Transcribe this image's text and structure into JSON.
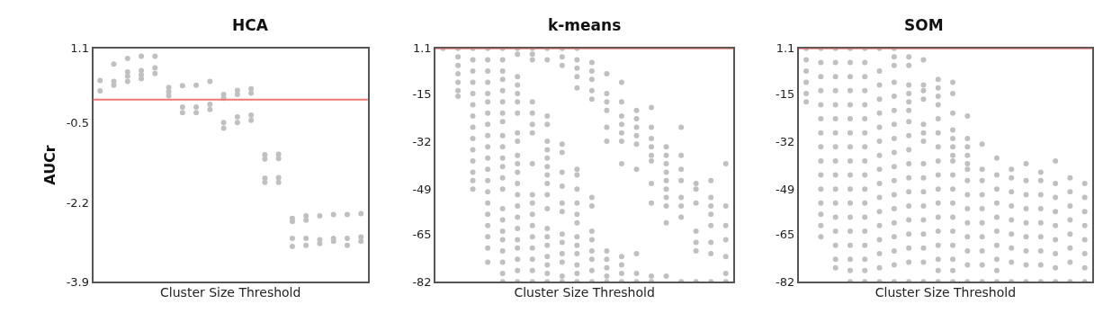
{
  "chart_data": [
    {
      "type": "scatter",
      "title": "HCA",
      "xlabel": "Cluster Size Threshold",
      "ylabel": "AUCr",
      "categories": [
        null,
        null,
        null,
        null,
        null,
        null,
        null,
        null,
        null,
        null,
        null,
        null,
        null,
        null,
        null,
        null,
        null,
        null,
        null,
        null
      ],
      "ylim": [
        -3.9,
        1.1
      ],
      "yticks": [
        1.1,
        -0.5,
        -2.2,
        -3.9
      ],
      "tick_labels": "y",
      "grid": false,
      "marker": "circle",
      "color": "#c0c0c0",
      "ref_lines": [
        {
          "axis": "y",
          "value": 0,
          "color": "#f07870"
        }
      ],
      "series": [
        {
          "values": [
            0.41,
            0.76,
            0.88,
            0.93,
            0.93,
            0.26,
            0.3,
            0.31,
            0.39,
            0.11,
            0.2,
            0.23,
            -1.18,
            -1.17,
            -2.54,
            -2.49,
            -2.49,
            -2.46,
            -2.46,
            -2.44
          ]
        },
        {
          "values": [
            0.19,
            0.39,
            0.59,
            0.62,
            0.68,
            0.17,
            -0.16,
            -0.16,
            -0.1,
            0.03,
            0.11,
            0.14,
            -1.27,
            -1.26,
            -2.61,
            -2.58,
            -3.0,
            -2.97,
            -2.97,
            -2.94
          ]
        },
        {
          "values": [
            null,
            0.31,
            0.5,
            0.53,
            0.56,
            0.08,
            -0.28,
            -0.28,
            -0.21,
            -0.49,
            -0.37,
            -0.33,
            -1.68,
            -1.67,
            -2.97,
            -2.97,
            -3.08,
            -3.03,
            -3.12,
            -3.03
          ]
        },
        {
          "values": [
            null,
            null,
            0.39,
            0.45,
            null,
            null,
            null,
            null,
            null,
            -0.61,
            -0.49,
            -0.44,
            -1.77,
            -1.77,
            -3.14,
            -3.12,
            null,
            null,
            null,
            null
          ]
        }
      ]
    },
    {
      "type": "scatter",
      "title": "k-means",
      "xlabel": "Cluster Size Threshold",
      "categories": [
        null,
        null,
        null,
        null,
        null,
        null,
        null,
        null,
        null,
        null,
        null,
        null,
        null,
        null,
        null,
        null,
        null,
        null,
        null,
        null
      ],
      "ylim": [
        -82,
        1.1
      ],
      "yticks": [
        1.1,
        -15,
        -32,
        -49,
        -65,
        -82
      ],
      "tick_labels": "y",
      "grid": false,
      "marker": "circle",
      "color": "#c0c0c0",
      "ref_lines": [
        {
          "axis": "y",
          "value": 1.1,
          "color": "#f07870"
        }
      ],
      "series": [
        {
          "values": [
            1.1,
            1.1,
            1.1,
            1.1,
            1.1,
            1.1,
            1.1,
            1.1,
            1.1,
            1.1,
            -4,
            -8,
            -11,
            -21,
            -20,
            -34,
            -27,
            -47,
            -46,
            -40
          ]
        },
        {
          "values": [
            null,
            -2,
            -3,
            -3,
            -3,
            -1,
            -1,
            -3,
            -2,
            -3,
            -7,
            -15,
            -18,
            -24,
            -27,
            -37,
            -37,
            -49,
            -52,
            -55
          ]
        },
        {
          "values": [
            null,
            -5,
            -7,
            -7,
            -7,
            -9,
            -3,
            -23,
            -5,
            -6,
            -10,
            -18,
            -23,
            -27,
            -31,
            -40,
            -42,
            -54,
            -55,
            -62
          ]
        },
        {
          "values": [
            null,
            -8,
            -11,
            -11,
            -10,
            -12,
            -18,
            -26,
            -33,
            -9,
            -14,
            -21,
            -26,
            -30,
            -34,
            -43,
            -46,
            -64,
            -58,
            -67
          ]
        },
        {
          "values": [
            null,
            -11,
            -15,
            -15,
            -14,
            -15,
            -22,
            -32,
            -36,
            -13,
            -17,
            -27,
            -29,
            -33,
            -37,
            -46,
            -52,
            -68,
            -62,
            -73
          ]
        },
        {
          "values": [
            null,
            -14,
            -19,
            -18,
            -18,
            -18,
            -26,
            -35,
            -43,
            -42,
            -52,
            -32,
            -32,
            -42,
            -39,
            -49,
            -55,
            -71,
            -68,
            -79
          ]
        },
        {
          "values": [
            null,
            -16,
            -23,
            -22,
            -22,
            -22,
            -29,
            -38,
            -48,
            -44,
            -55,
            -71,
            -40,
            -72,
            -47,
            -52,
            -59,
            -82,
            -72,
            -82
          ]
        },
        {
          "values": [
            null,
            null,
            -27,
            -26,
            -25,
            -29,
            -40,
            -41,
            -54,
            -49,
            -64,
            -74,
            -73,
            -79,
            -54,
            -55,
            -82,
            null,
            -82,
            null
          ]
        },
        {
          "values": [
            null,
            null,
            -31,
            -30,
            -30,
            -32,
            -51,
            -44,
            -57,
            -54,
            -67,
            -77,
            -76,
            -82,
            -80,
            -61,
            null,
            null,
            null,
            null
          ]
        },
        {
          "values": [
            null,
            null,
            -35,
            -34,
            -34,
            -37,
            -54,
            -47,
            -65,
            -58,
            -71,
            -80,
            -79,
            null,
            -82,
            -80,
            null,
            null,
            null,
            null
          ]
        },
        {
          "values": [
            null,
            null,
            -39,
            -38,
            -38,
            -40,
            -58,
            -51,
            -68,
            -61,
            -74,
            -82,
            -82,
            null,
            null,
            null,
            null,
            null,
            null,
            null
          ]
        },
        {
          "values": [
            null,
            null,
            -43,
            -42,
            -41,
            -43,
            -62,
            -56,
            -72,
            -66,
            -78,
            null,
            null,
            null,
            null,
            null,
            null,
            null,
            null,
            null
          ]
        },
        {
          "values": [
            null,
            null,
            -46,
            -46,
            -45,
            -47,
            -66,
            -63,
            -75,
            -69,
            -82,
            null,
            null,
            null,
            null,
            null,
            null,
            null,
            null,
            null
          ]
        },
        {
          "values": [
            null,
            null,
            -49,
            -50,
            -49,
            -51,
            -70,
            -66,
            -80,
            -72,
            null,
            null,
            null,
            null,
            null,
            null,
            null,
            null,
            null,
            null
          ]
        },
        {
          "values": [
            null,
            null,
            null,
            -54,
            -56,
            -55,
            -74,
            -69,
            -82,
            -76,
            null,
            null,
            null,
            null,
            null,
            null,
            null,
            null,
            null,
            null
          ]
        },
        {
          "values": [
            null,
            null,
            null,
            -58,
            -60,
            -59,
            -78,
            -73,
            null,
            -79,
            null,
            null,
            null,
            null,
            null,
            null,
            null,
            null,
            null,
            null
          ]
        },
        {
          "values": [
            null,
            null,
            null,
            -62,
            -64,
            -63,
            -82,
            -76,
            null,
            -82,
            null,
            null,
            null,
            null,
            null,
            null,
            null,
            null,
            null,
            null
          ]
        },
        {
          "values": [
            null,
            null,
            null,
            -66,
            -67,
            -67,
            null,
            -79,
            null,
            null,
            null,
            null,
            null,
            null,
            null,
            null,
            null,
            null,
            null,
            null
          ]
        },
        {
          "values": [
            null,
            null,
            null,
            -70,
            -71,
            -70,
            null,
            -82,
            null,
            null,
            null,
            null,
            null,
            null,
            null,
            null,
            null,
            null,
            null,
            null
          ]
        },
        {
          "values": [
            null,
            null,
            null,
            -75,
            -75,
            -74,
            null,
            null,
            null,
            null,
            null,
            null,
            null,
            null,
            null,
            null,
            null,
            null,
            null,
            null
          ]
        },
        {
          "values": [
            null,
            null,
            null,
            null,
            -79,
            -78,
            null,
            null,
            null,
            null,
            null,
            null,
            null,
            null,
            null,
            null,
            null,
            null,
            null,
            null
          ]
        },
        {
          "values": [
            null,
            null,
            null,
            null,
            -82,
            -82,
            null,
            null,
            null,
            null,
            null,
            null,
            null,
            null,
            null,
            null,
            null,
            null,
            null,
            null
          ]
        }
      ]
    },
    {
      "type": "scatter",
      "title": "SOM",
      "xlabel": "Cluster Size Threshold",
      "categories": [
        null,
        null,
        null,
        null,
        null,
        null,
        null,
        null,
        null,
        null,
        null,
        null,
        null,
        null,
        null,
        null,
        null,
        null,
        null,
        null
      ],
      "ylim": [
        -82,
        1.1
      ],
      "yticks": [
        1.1,
        -15,
        -32,
        -49,
        -65,
        -82
      ],
      "tick_labels": "y",
      "grid": false,
      "marker": "circle",
      "color": "#c0c0c0",
      "ref_lines": [
        {
          "axis": "y",
          "value": 1.1,
          "color": "#f07870"
        }
      ],
      "series": [
        {
          "values": [
            1.1,
            1.1,
            1.1,
            1.1,
            1.1,
            1.1,
            1.1,
            -2,
            -3,
            -10,
            -11,
            -23,
            -33,
            -38,
            -42,
            -40,
            -43,
            -39,
            -45,
            -47
          ]
        },
        {
          "values": [
            -3,
            -4,
            -4,
            -4,
            -4,
            -7,
            -2,
            -5,
            -12,
            -13,
            -15,
            -31,
            -42,
            -44,
            -45,
            -46,
            -46,
            -47,
            -50,
            -52
          ]
        },
        {
          "values": [
            -7,
            -9,
            -9,
            -9,
            -9,
            -12,
            -5,
            -12,
            -14,
            -16,
            -22,
            -34,
            -46,
            -49,
            -50,
            -51,
            -51,
            -52,
            -55,
            -57
          ]
        },
        {
          "values": [
            -11,
            -14,
            -14,
            -14,
            -14,
            -17,
            -11,
            -15,
            -17,
            -19,
            -28,
            -37,
            -51,
            -54,
            -55,
            -56,
            -56,
            -57,
            -60,
            -62
          ]
        },
        {
          "values": [
            -15,
            -19,
            -19,
            -19,
            -19,
            -22,
            -16,
            -18,
            -26,
            -24,
            -31,
            -40,
            -56,
            -59,
            -60,
            -61,
            -61,
            -62,
            -65,
            -67
          ]
        },
        {
          "values": [
            -18,
            -24,
            -24,
            -24,
            -24,
            -27,
            -21,
            -21,
            -29,
            -29,
            -34,
            -42,
            -61,
            -64,
            -65,
            -66,
            -66,
            -67,
            -70,
            -72
          ]
        },
        {
          "values": [
            null,
            -29,
            -29,
            -29,
            -29,
            -32,
            -26,
            -25,
            -32,
            -34,
            -37,
            -46,
            -66,
            -69,
            -70,
            -71,
            -71,
            -72,
            -75,
            -77
          ]
        },
        {
          "values": [
            null,
            -34,
            -34,
            -34,
            -34,
            -37,
            -31,
            -30,
            -40,
            -39,
            -39,
            -51,
            -71,
            -74,
            -75,
            -76,
            -76,
            -77,
            -82,
            -82
          ]
        },
        {
          "values": [
            null,
            -39,
            -39,
            -39,
            -39,
            -42,
            -36,
            -35,
            -45,
            -44,
            -44,
            -56,
            -76,
            -78,
            -82,
            -82,
            -82,
            -82,
            null,
            null
          ]
        },
        {
          "values": [
            null,
            -44,
            -44,
            -44,
            -44,
            -47,
            -41,
            -40,
            -50,
            -49,
            -49,
            -61,
            -82,
            -82,
            null,
            null,
            null,
            null,
            null,
            null
          ]
        },
        {
          "values": [
            null,
            -49,
            -49,
            -49,
            -49,
            -52,
            -46,
            -45,
            -55,
            -54,
            -54,
            -66,
            null,
            null,
            null,
            null,
            null,
            null,
            null,
            null
          ]
        },
        {
          "values": [
            null,
            -54,
            -54,
            -54,
            -54,
            -57,
            -51,
            -50,
            -60,
            -59,
            -59,
            -71,
            null,
            null,
            null,
            null,
            null,
            null,
            null,
            null
          ]
        },
        {
          "values": [
            null,
            -58,
            -59,
            -59,
            -59,
            -62,
            -56,
            -55,
            -65,
            -64,
            -64,
            -76,
            null,
            null,
            null,
            null,
            null,
            null,
            null,
            null
          ]
        },
        {
          "values": [
            null,
            -62,
            -64,
            -64,
            -64,
            -67,
            -61,
            -60,
            -70,
            -69,
            -69,
            -82,
            null,
            null,
            null,
            null,
            null,
            null,
            null,
            null
          ]
        },
        {
          "values": [
            null,
            -66,
            -69,
            -69,
            -69,
            -72,
            -66,
            -65,
            -75,
            -74,
            -74,
            null,
            null,
            null,
            null,
            null,
            null,
            null,
            null,
            null
          ]
        },
        {
          "values": [
            null,
            null,
            -74,
            -74,
            -74,
            -77,
            -71,
            -70,
            -82,
            -78,
            -78,
            null,
            null,
            null,
            null,
            null,
            null,
            null,
            null,
            null
          ]
        },
        {
          "values": [
            null,
            null,
            -77,
            -78,
            -78,
            -82,
            -76,
            -75,
            null,
            -82,
            -82,
            null,
            null,
            null,
            null,
            null,
            null,
            null,
            null,
            null
          ]
        },
        {
          "values": [
            null,
            null,
            null,
            -82,
            -82,
            null,
            -82,
            -82,
            null,
            null,
            null,
            null,
            null,
            null,
            null,
            null,
            null,
            null,
            null,
            null
          ]
        }
      ]
    }
  ]
}
